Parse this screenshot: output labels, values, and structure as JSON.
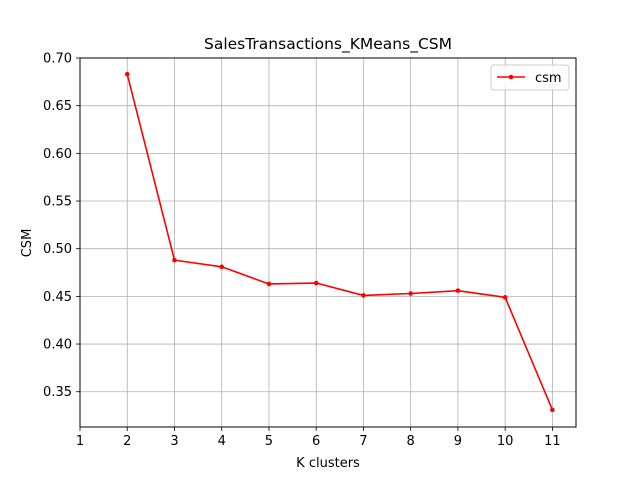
{
  "chart_data": {
    "type": "line",
    "title": "SalesTransactions_KMeans_CSM",
    "xlabel": "K clusters",
    "ylabel": "CSM",
    "xlim": [
      1,
      11.5
    ],
    "ylim": [
      0.313,
      0.7
    ],
    "x_ticks": [
      "1",
      "2",
      "3",
      "4",
      "5",
      "6",
      "7",
      "8",
      "9",
      "10",
      "11"
    ],
    "y_ticks": [
      "0.35",
      "0.40",
      "0.45",
      "0.50",
      "0.55",
      "0.60",
      "0.65",
      "0.70"
    ],
    "grid": true,
    "legend_position": "top-right",
    "series": [
      {
        "name": "csm",
        "color": "#ff0000",
        "marker": "point",
        "x": [
          2,
          3,
          4,
          5,
          6,
          7,
          8,
          9,
          10,
          11
        ],
        "y": [
          0.683,
          0.488,
          0.481,
          0.463,
          0.464,
          0.451,
          0.453,
          0.456,
          0.449,
          0.331
        ]
      }
    ]
  },
  "colors": {
    "grid": "#b0b0b0",
    "axes": "#000000",
    "background": "#ffffff"
  }
}
